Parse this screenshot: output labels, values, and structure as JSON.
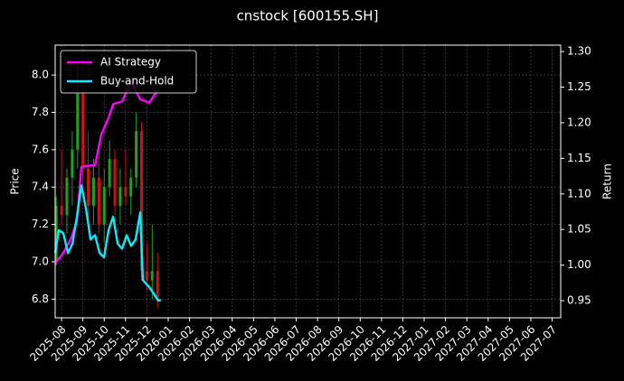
{
  "chart_data": {
    "type": "candlestick",
    "title": "cnstock [600155.SH]",
    "ylabel": "Price",
    "y2label": "Return",
    "grid": true,
    "legend": "upper left",
    "up_color": "#1fa01f",
    "down_color": "#d21010",
    "xlim": [
      -0.3,
      23.4
    ],
    "ylim": [
      6.7,
      8.16
    ],
    "y2lim": [
      0.926,
      1.309
    ],
    "xticks": [
      {
        "value": 0,
        "label": "2025-08"
      },
      {
        "value": 1,
        "label": "2025-09"
      },
      {
        "value": 2,
        "label": "2025-10"
      },
      {
        "value": 3,
        "label": "2025-11"
      },
      {
        "value": 4,
        "label": "2025-12"
      },
      {
        "value": 5,
        "label": "2026-01"
      },
      {
        "value": 6,
        "label": "2026-02"
      },
      {
        "value": 7,
        "label": "2026-03"
      },
      {
        "value": 8,
        "label": "2026-04"
      },
      {
        "value": 9,
        "label": "2026-05"
      },
      {
        "value": 10,
        "label": "2026-06"
      },
      {
        "value": 11,
        "label": "2026-07"
      },
      {
        "value": 12,
        "label": "2026-08"
      },
      {
        "value": 13,
        "label": "2026-09"
      },
      {
        "value": 14,
        "label": "2026-10"
      },
      {
        "value": 15,
        "label": "2026-11"
      },
      {
        "value": 16,
        "label": "2026-12"
      },
      {
        "value": 17,
        "label": "2027-01"
      },
      {
        "value": 18,
        "label": "2027-02"
      },
      {
        "value": 19,
        "label": "2027-03"
      },
      {
        "value": 20,
        "label": "2027-04"
      },
      {
        "value": 21,
        "label": "2027-05"
      },
      {
        "value": 22,
        "label": "2027-06"
      },
      {
        "value": 23,
        "label": "2027-07"
      }
    ],
    "yticks": [
      6.8,
      {
        "value": 7,
        "label": "7.0"
      },
      7.2,
      7.4,
      7.6,
      7.8,
      {
        "value": 8,
        "label": "8.0"
      }
    ],
    "y2ticks": [
      0.95,
      {
        "value": 1,
        "label": "1.00"
      },
      1.05,
      {
        "value": 1.1,
        "label": "1.10"
      },
      1.15,
      {
        "value": 1.2,
        "label": "1.20"
      },
      1.25,
      {
        "value": 1.3,
        "label": "1.30"
      }
    ],
    "ohlc": {
      "x": [
        -0.25,
        0,
        0.25,
        0.5,
        0.75,
        1,
        1.25,
        1.5,
        1.75,
        2,
        2.25,
        2.5,
        2.75,
        3,
        3.25,
        3.5,
        3.75,
        4,
        4.25,
        4.5
      ],
      "open": [
        7.0,
        7.3,
        7.25,
        7.45,
        7.6,
        7.9,
        7.5,
        7.3,
        7.45,
        7.2,
        7.4,
        7.55,
        7.3,
        7.4,
        7.35,
        7.45,
        7.7,
        6.95,
        6.9,
        6.95
      ],
      "high": [
        7.35,
        7.6,
        7.5,
        7.7,
        8.05,
        8.0,
        7.7,
        7.55,
        7.6,
        7.5,
        7.65,
        7.6,
        7.5,
        7.6,
        7.5,
        7.8,
        7.75,
        7.1,
        7.2,
        7.05
      ],
      "low": [
        6.98,
        7.2,
        7.15,
        7.3,
        7.5,
        7.4,
        7.2,
        7.2,
        7.15,
        7.1,
        7.35,
        7.25,
        7.2,
        7.3,
        7.25,
        7.4,
        6.9,
        6.85,
        6.8,
        6.75
      ],
      "close": [
        7.3,
        7.25,
        7.45,
        7.6,
        7.9,
        7.5,
        7.3,
        7.45,
        7.2,
        7.4,
        7.55,
        7.3,
        7.4,
        7.35,
        7.45,
        7.7,
        6.95,
        6.9,
        6.95,
        6.8
      ]
    },
    "series": [
      {
        "name": "AI Strategy",
        "color": "#ff00ff",
        "axis": "y2",
        "x": [
          -0.3,
          0.08,
          0.42,
          0.72,
          0.93,
          1.36,
          1.57,
          1.86,
          2.2,
          2.42,
          2.84,
          3.26,
          3.47,
          3.69,
          4.11,
          4.32,
          4.53
        ],
        "values": [
          1.002,
          1.017,
          1.036,
          1.061,
          1.138,
          1.14,
          1.14,
          1.183,
          1.207,
          1.226,
          1.23,
          1.258,
          1.245,
          1.233,
          1.228,
          1.238,
          1.245
        ]
      },
      {
        "name": "Buy-and-Hold",
        "color": "#00f0ff",
        "axis": "y2",
        "x": [
          -0.3,
          -0.13,
          0.08,
          0.3,
          0.51,
          0.72,
          0.93,
          1.14,
          1.36,
          1.57,
          1.78,
          1.99,
          2.2,
          2.42,
          2.63,
          2.84,
          3.05,
          3.26,
          3.47,
          3.69,
          3.81,
          4.11,
          4.32,
          4.53,
          4.66
        ],
        "values": [
          1.017,
          1.049,
          1.045,
          1.017,
          1.03,
          1.068,
          1.112,
          1.08,
          1.036,
          1.042,
          1.017,
          1.011,
          1.049,
          1.068,
          1.03,
          1.023,
          1.042,
          1.027,
          1.036,
          1.074,
          0.979,
          0.969,
          0.96,
          0.95,
          0.951
        ]
      }
    ]
  }
}
